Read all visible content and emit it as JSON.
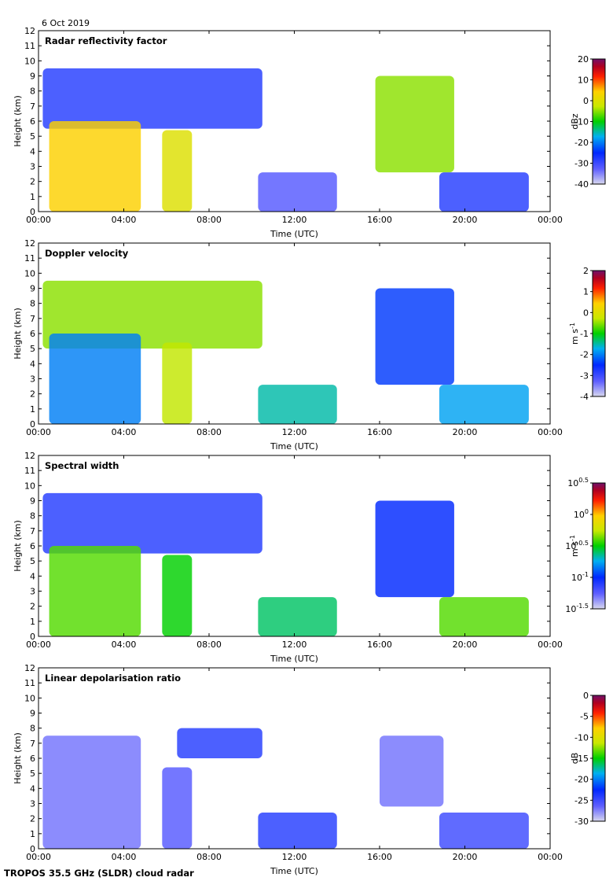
{
  "date_label": "6 Oct 2019",
  "footer": "TROPOS 35.5 GHz (SLDR) cloud radar",
  "chart_data": [
    {
      "type": "heatmap",
      "title": "Radar reflectivity factor",
      "xlabel": "Time (UTC)",
      "ylabel": "Height (km)",
      "xlim": [
        0,
        24
      ],
      "ylim": [
        0,
        12
      ],
      "xticks": [
        "00:00",
        "04:00",
        "08:00",
        "12:00",
        "16:00",
        "20:00",
        "00:00"
      ],
      "yticks": [
        "0",
        "1",
        "2",
        "3",
        "4",
        "5",
        "6",
        "7",
        "8",
        "9",
        "10",
        "11",
        "12"
      ],
      "colorbar": {
        "unit": "dBz",
        "min": -40,
        "max": 20,
        "ticks": [
          "20",
          "10",
          "0",
          "-10",
          "-20",
          "-30",
          "-40"
        ]
      },
      "features": [
        {
          "t0": 0.2,
          "t1": 10.5,
          "h0": 5.5,
          "h1": 9.5,
          "value": -28
        },
        {
          "t0": 0.5,
          "t1": 4.8,
          "h0": 0.0,
          "h1": 6.0,
          "value": 4
        },
        {
          "t0": 5.8,
          "t1": 7.2,
          "h0": 0.0,
          "h1": 5.4,
          "value": 0
        },
        {
          "t0": 15.8,
          "t1": 19.5,
          "h0": 2.6,
          "h1": 9.0,
          "value": -5
        },
        {
          "t0": 10.3,
          "t1": 14.0,
          "h0": 0.0,
          "h1": 2.6,
          "value": -32
        },
        {
          "t0": 18.8,
          "t1": 23.0,
          "h0": 0.0,
          "h1": 2.6,
          "value": -28
        }
      ]
    },
    {
      "type": "heatmap",
      "title": "Doppler velocity",
      "xlabel": "Time (UTC)",
      "ylabel": "Height (km)",
      "xlim": [
        0,
        24
      ],
      "ylim": [
        0,
        12
      ],
      "xticks": [
        "00:00",
        "04:00",
        "08:00",
        "12:00",
        "16:00",
        "20:00",
        "00:00"
      ],
      "yticks": [
        "0",
        "1",
        "2",
        "3",
        "4",
        "5",
        "6",
        "7",
        "8",
        "9",
        "10",
        "11",
        "12"
      ],
      "colorbar": {
        "unit": "m s-1",
        "min": -4,
        "max": 2,
        "ticks": [
          "2",
          "1",
          "0",
          "-1",
          "-2",
          "-3",
          "-4"
        ]
      },
      "features": [
        {
          "t0": 0.2,
          "t1": 10.5,
          "h0": 5.0,
          "h1": 9.5,
          "value": -0.5
        },
        {
          "t0": 0.5,
          "t1": 4.8,
          "h0": 0.0,
          "h1": 6.0,
          "value": -2.0
        },
        {
          "t0": 5.8,
          "t1": 7.2,
          "h0": 0.0,
          "h1": 5.4,
          "value": -0.3
        },
        {
          "t0": 15.8,
          "t1": 19.5,
          "h0": 2.6,
          "h1": 9.0,
          "value": -2.4
        },
        {
          "t0": 10.3,
          "t1": 14.0,
          "h0": 0.0,
          "h1": 2.6,
          "value": -1.5
        },
        {
          "t0": 18.8,
          "t1": 23.0,
          "h0": 0.0,
          "h1": 2.6,
          "value": -1.8
        }
      ]
    },
    {
      "type": "heatmap",
      "title": "Spectral width",
      "xlabel": "Time (UTC)",
      "ylabel": "Height (km)",
      "xlim": [
        0,
        24
      ],
      "ylim": [
        0,
        12
      ],
      "xticks": [
        "00:00",
        "04:00",
        "08:00",
        "12:00",
        "16:00",
        "20:00",
        "00:00"
      ],
      "yticks": [
        "0",
        "1",
        "2",
        "3",
        "4",
        "5",
        "6",
        "7",
        "8",
        "9",
        "10",
        "11",
        "12"
      ],
      "colorbar": {
        "unit": "m s-1",
        "scale": "log10",
        "min": -1.5,
        "max": 0.5,
        "ticks": [
          {
            "base": "10",
            "exp": "0.5"
          },
          {
            "base": "10",
            "exp": "0"
          },
          {
            "base": "10",
            "exp": "-0.5"
          },
          {
            "base": "10",
            "exp": "-1"
          },
          {
            "base": "10",
            "exp": "-1.5"
          }
        ]
      },
      "features": [
        {
          "t0": 0.2,
          "t1": 10.5,
          "h0": 5.5,
          "h1": 9.5,
          "value": -1.1
        },
        {
          "t0": 0.5,
          "t1": 4.8,
          "h0": 0.0,
          "h1": 6.0,
          "value": -0.4
        },
        {
          "t0": 5.8,
          "t1": 7.2,
          "h0": 0.0,
          "h1": 5.4,
          "value": -0.5
        },
        {
          "t0": 15.8,
          "t1": 19.5,
          "h0": 2.6,
          "h1": 9.0,
          "value": -1.0
        },
        {
          "t0": 10.3,
          "t1": 14.0,
          "h0": 0.0,
          "h1": 2.6,
          "value": -0.6
        },
        {
          "t0": 18.8,
          "t1": 23.0,
          "h0": 0.0,
          "h1": 2.6,
          "value": -0.4
        }
      ]
    },
    {
      "type": "heatmap",
      "title": "Linear depolarisation ratio",
      "xlabel": "Time (UTC)",
      "ylabel": "Height (km)",
      "xlim": [
        0,
        24
      ],
      "ylim": [
        0,
        12
      ],
      "xticks": [
        "00:00",
        "04:00",
        "08:00",
        "12:00",
        "16:00",
        "20:00",
        "00:00"
      ],
      "yticks": [
        "0",
        "1",
        "2",
        "3",
        "4",
        "5",
        "6",
        "7",
        "8",
        "9",
        "10",
        "11",
        "12"
      ],
      "colorbar": {
        "unit": "dB",
        "min": -30,
        "max": 0,
        "ticks": [
          "0",
          "-5",
          "-10",
          "-15",
          "-20",
          "-25",
          "-30"
        ]
      },
      "features": [
        {
          "t0": 0.2,
          "t1": 4.8,
          "h0": 0.0,
          "h1": 7.5,
          "value": -27
        },
        {
          "t0": 6.5,
          "t1": 10.5,
          "h0": 6.0,
          "h1": 8.0,
          "value": -24
        },
        {
          "t0": 5.8,
          "t1": 7.2,
          "h0": 0.0,
          "h1": 5.4,
          "value": -26
        },
        {
          "t0": 16.0,
          "t1": 19.0,
          "h0": 2.8,
          "h1": 7.5,
          "value": -27
        },
        {
          "t0": 10.3,
          "t1": 14.0,
          "h0": 0.0,
          "h1": 2.4,
          "value": -24
        },
        {
          "t0": 18.8,
          "t1": 23.0,
          "h0": 0.0,
          "h1": 2.4,
          "value": -25
        }
      ]
    }
  ]
}
